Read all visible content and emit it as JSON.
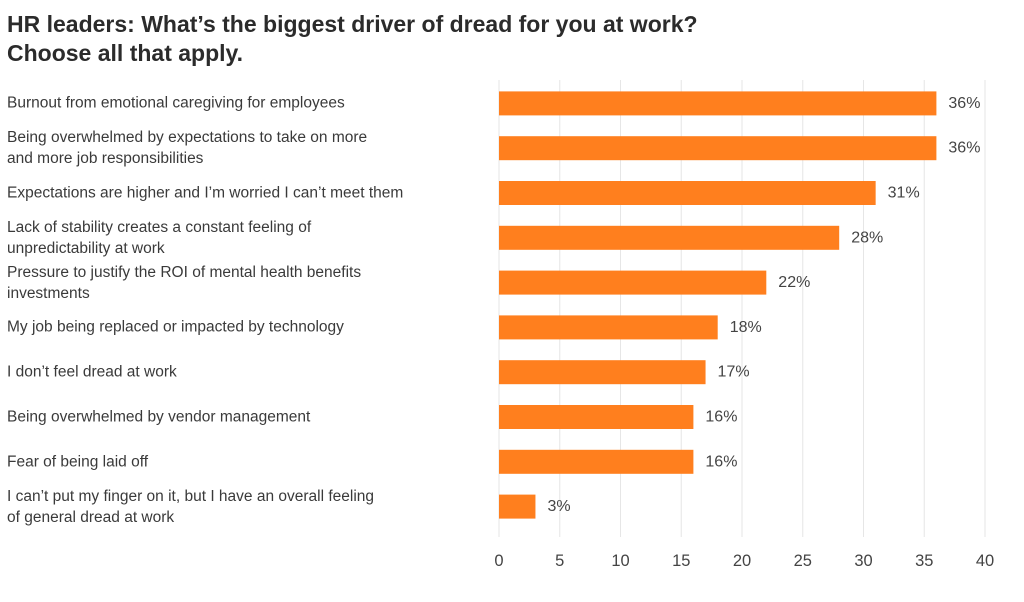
{
  "chart_data": {
    "type": "bar",
    "orientation": "horizontal",
    "title": "HR leaders: What’s the biggest driver of dread for you at work? Choose all that apply.",
    "title_lines": [
      "HR leaders: What’s the biggest driver of dread for you at work?",
      "Choose all that apply."
    ],
    "categories": [
      [
        "Burnout from emotional caregiving for employees"
      ],
      [
        "Being overwhelmed by expectations to take on more",
        "and more job responsibilities"
      ],
      [
        "Expectations are higher and I’m worried I can’t meet them"
      ],
      [
        "Lack of stability creates a constant feeling of",
        "unpredictability at work"
      ],
      [
        "Pressure to justify the ROI of mental health benefits",
        "investments"
      ],
      [
        "My job being replaced or impacted by technology"
      ],
      [
        "I don’t feel dread at work"
      ],
      [
        "Being overwhelmed by vendor management"
      ],
      [
        "Fear of being laid off"
      ],
      [
        "I can’t put my finger on it, but I have an overall feeling",
        "of general dread at work"
      ]
    ],
    "values": [
      36,
      36,
      31,
      28,
      22,
      18,
      17,
      16,
      16,
      3
    ],
    "value_labels": [
      "36%",
      "36%",
      "31%",
      "28%",
      "22%",
      "18%",
      "17%",
      "16%",
      "16%",
      "3%"
    ],
    "xlim": [
      0,
      40
    ],
    "xticks": [
      0,
      5,
      10,
      15,
      20,
      25,
      30,
      35,
      40
    ],
    "xtick_labels": [
      "0",
      "5",
      "10",
      "15",
      "20",
      "25",
      "30",
      "35",
      "40"
    ],
    "xlabel": "",
    "ylabel": "",
    "grid": "vertical",
    "legend": "none",
    "bar_color": "#FF7F1E",
    "grid_color": "#e6e6e6"
  }
}
